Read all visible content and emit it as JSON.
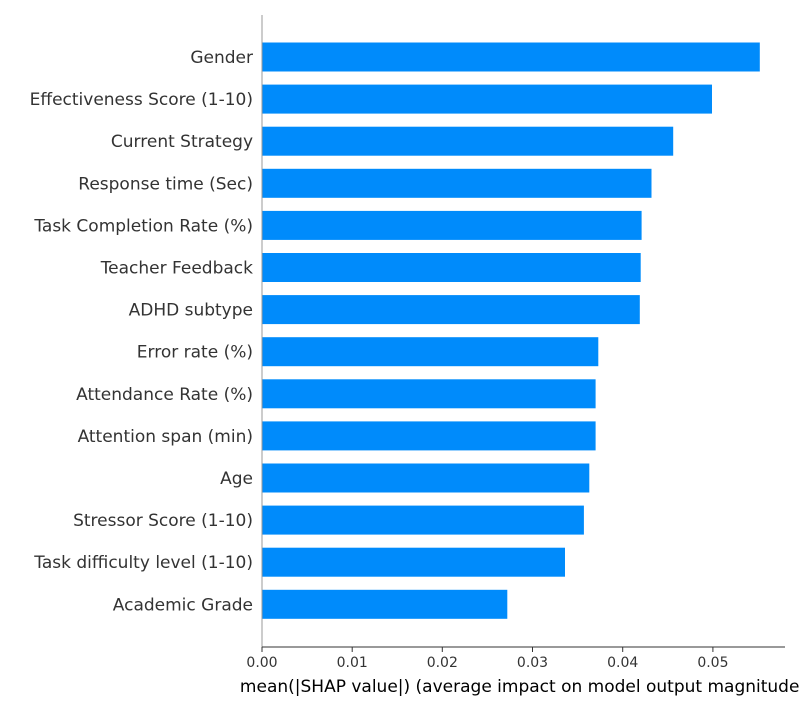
{
  "chart_data": {
    "type": "bar",
    "orientation": "horizontal",
    "categories": [
      "Gender",
      "Effectiveness Score (1-10)",
      "Current Strategy",
      "Response time (Sec)",
      "Task Completion Rate (%)",
      "Teacher Feedback",
      "ADHD subtype",
      "Error rate (%)",
      "Attendance Rate (%)",
      "Attention span (min)",
      "Age",
      "Stressor Score (1-10)",
      "Task difficulty level (1-10)",
      "Academic Grade"
    ],
    "values": [
      0.0552,
      0.0499,
      0.0456,
      0.0432,
      0.0421,
      0.042,
      0.0419,
      0.0373,
      0.037,
      0.037,
      0.0363,
      0.0357,
      0.0336,
      0.0272
    ],
    "xlabel": "mean(|SHAP value|) (average impact on model output magnitude)",
    "ylabel": "",
    "title": "",
    "xlim": [
      0,
      0.058
    ],
    "xticks": [
      "0.00",
      "0.01",
      "0.02",
      "0.03",
      "0.04",
      "0.05"
    ],
    "bar_color": "#008bfb",
    "grid": false
  }
}
